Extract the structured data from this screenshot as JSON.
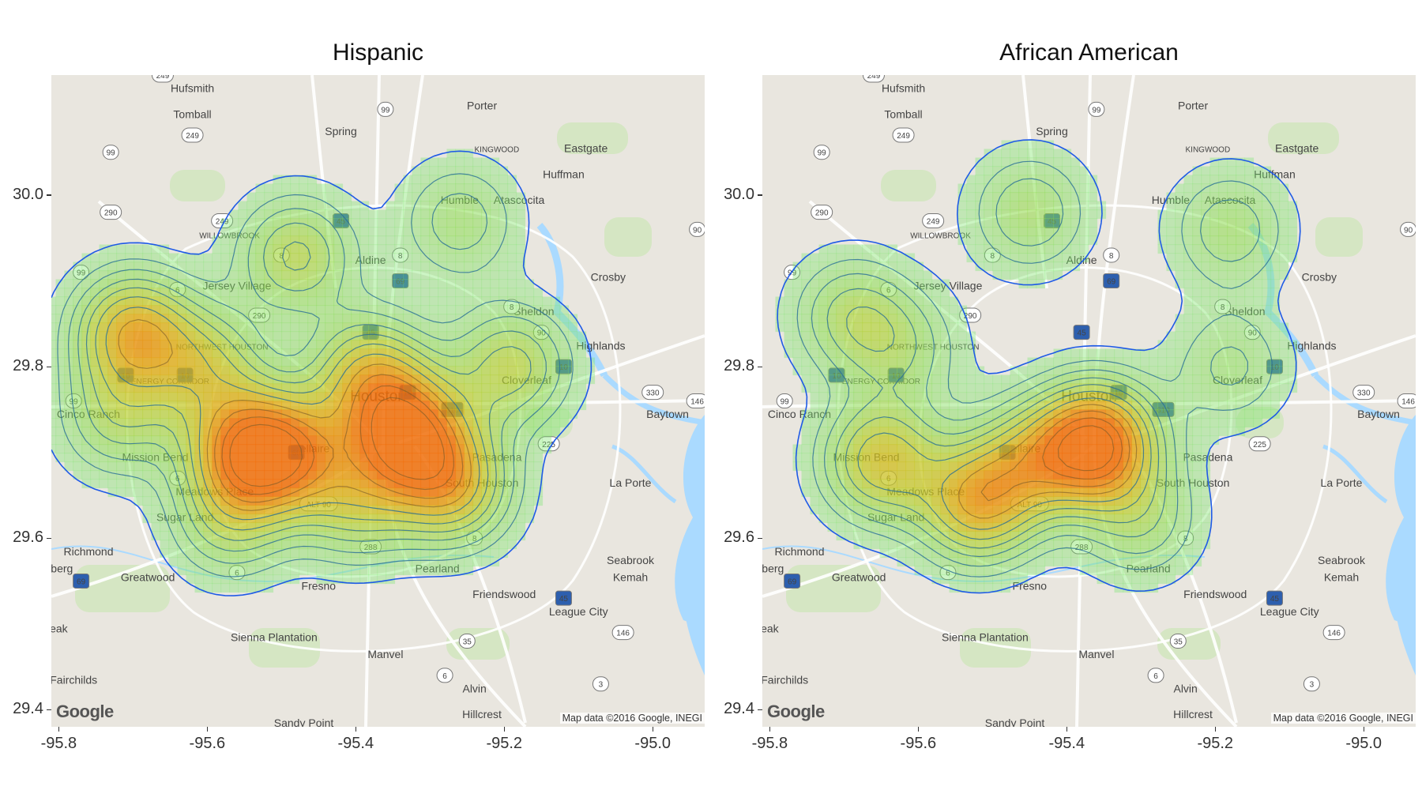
{
  "panels": [
    {
      "title": "Hispanic",
      "peaks": [
        {
          "x": -95.7,
          "y": 29.84,
          "h": 0.62
        },
        {
          "x": -95.55,
          "y": 29.7,
          "h": 0.66
        },
        {
          "x": -95.49,
          "y": 29.7,
          "h": 0.6
        },
        {
          "x": -95.33,
          "y": 29.72,
          "h": 0.85
        },
        {
          "x": -95.27,
          "y": 29.66,
          "h": 0.55
        },
        {
          "x": -95.38,
          "y": 29.79,
          "h": 0.52
        },
        {
          "x": -95.48,
          "y": 29.93,
          "h": 0.38
        },
        {
          "x": -95.6,
          "y": 29.8,
          "h": 0.4
        },
        {
          "x": -95.19,
          "y": 29.8,
          "h": 0.4
        },
        {
          "x": -95.26,
          "y": 29.97,
          "h": 0.25
        },
        {
          "x": -95.57,
          "y": 29.62,
          "h": 0.3
        },
        {
          "x": -95.4,
          "y": 29.64,
          "h": 0.35
        },
        {
          "x": -95.72,
          "y": 29.74,
          "h": 0.3
        }
      ]
    },
    {
      "title": "African American",
      "peaks": [
        {
          "x": -95.36,
          "y": 29.71,
          "h": 0.95
        },
        {
          "x": -95.52,
          "y": 29.64,
          "h": 0.6
        },
        {
          "x": -95.65,
          "y": 29.69,
          "h": 0.52
        },
        {
          "x": -95.45,
          "y": 29.69,
          "h": 0.4
        },
        {
          "x": -95.69,
          "y": 29.86,
          "h": 0.3
        },
        {
          "x": -95.45,
          "y": 29.98,
          "h": 0.28
        },
        {
          "x": -95.18,
          "y": 29.96,
          "h": 0.26
        },
        {
          "x": -95.18,
          "y": 29.8,
          "h": 0.22
        },
        {
          "x": -95.62,
          "y": 29.82,
          "h": 0.22
        },
        {
          "x": -95.3,
          "y": 29.62,
          "h": 0.25
        }
      ]
    }
  ],
  "x_axis": {
    "ticks": [
      "-95.8",
      "-95.6",
      "-95.4",
      "-95.2",
      "-95.0"
    ],
    "values": [
      -95.8,
      -95.6,
      -95.4,
      -95.2,
      -95.0
    ],
    "range": [
      -95.81,
      -94.93
    ]
  },
  "y_axis": {
    "ticks": [
      "29.4",
      "29.6",
      "29.8",
      "30.0"
    ],
    "values": [
      29.4,
      29.6,
      29.8,
      30.0
    ],
    "range": [
      29.38,
      30.14
    ]
  },
  "places": [
    {
      "name": "Hufsmith",
      "lon": -95.62,
      "lat": 30.12
    },
    {
      "name": "Tomball",
      "lon": -95.62,
      "lat": 30.09
    },
    {
      "name": "Porter",
      "lon": -95.23,
      "lat": 30.1
    },
    {
      "name": "Spring",
      "lon": -95.42,
      "lat": 30.07
    },
    {
      "name": "KINGWOOD",
      "lon": -95.21,
      "lat": 30.05
    },
    {
      "name": "Eastgate",
      "lon": -95.09,
      "lat": 30.05
    },
    {
      "name": "Huffman",
      "lon": -95.12,
      "lat": 30.02
    },
    {
      "name": "Humble",
      "lon": -95.26,
      "lat": 29.99
    },
    {
      "name": "Atascocita",
      "lon": -95.18,
      "lat": 29.99
    },
    {
      "name": "WILLOWBROOK",
      "lon": -95.57,
      "lat": 29.95
    },
    {
      "name": "Aldine",
      "lon": -95.38,
      "lat": 29.92
    },
    {
      "name": "Crosby",
      "lon": -95.06,
      "lat": 29.9
    },
    {
      "name": "Jersey Village",
      "lon": -95.56,
      "lat": 29.89
    },
    {
      "name": "Sheldon",
      "lon": -95.16,
      "lat": 29.86
    },
    {
      "name": "NORTHWEST HOUSTON",
      "lon": -95.58,
      "lat": 29.82
    },
    {
      "name": "Highlands",
      "lon": -95.07,
      "lat": 29.82
    },
    {
      "name": "ENERGY CORRIDOR",
      "lon": -95.65,
      "lat": 29.78
    },
    {
      "name": "Cloverleaf",
      "lon": -95.17,
      "lat": 29.78
    },
    {
      "name": "Houston",
      "lon": -95.37,
      "lat": 29.76
    },
    {
      "name": "Cinco Ranch",
      "lon": -95.76,
      "lat": 29.74
    },
    {
      "name": "Baytown",
      "lon": -94.98,
      "lat": 29.74
    },
    {
      "name": "Bellaire",
      "lon": -95.46,
      "lat": 29.7
    },
    {
      "name": "Mission Bend",
      "lon": -95.67,
      "lat": 29.69
    },
    {
      "name": "Pasadena",
      "lon": -95.21,
      "lat": 29.69
    },
    {
      "name": "South Houston",
      "lon": -95.23,
      "lat": 29.66
    },
    {
      "name": "La Porte",
      "lon": -95.03,
      "lat": 29.66
    },
    {
      "name": "Meadows Place",
      "lon": -95.59,
      "lat": 29.65
    },
    {
      "name": "Sugar Land",
      "lon": -95.63,
      "lat": 29.62
    },
    {
      "name": "Richmond",
      "lon": -95.76,
      "lat": 29.58
    },
    {
      "name": "Greatwood",
      "lon": -95.68,
      "lat": 29.55
    },
    {
      "name": "Pearland",
      "lon": -95.29,
      "lat": 29.56
    },
    {
      "name": "Seabrook",
      "lon": -95.03,
      "lat": 29.57
    },
    {
      "name": "Kemah",
      "lon": -95.03,
      "lat": 29.55
    },
    {
      "name": "Fresno",
      "lon": -95.45,
      "lat": 29.54
    },
    {
      "name": "Friendswood",
      "lon": -95.2,
      "lat": 29.53
    },
    {
      "name": "League City",
      "lon": -95.1,
      "lat": 29.51
    },
    {
      "name": "Sienna Plantation",
      "lon": -95.51,
      "lat": 29.48
    },
    {
      "name": "Manvel",
      "lon": -95.36,
      "lat": 29.46
    },
    {
      "name": "Fairchilds",
      "lon": -95.78,
      "lat": 29.43
    },
    {
      "name": "Alvin",
      "lon": -95.24,
      "lat": 29.42
    },
    {
      "name": "Hillcrest",
      "lon": -95.23,
      "lat": 29.39
    },
    {
      "name": "Sandy Point",
      "lon": -95.47,
      "lat": 29.38
    },
    {
      "name": "nberg",
      "lon": -95.8,
      "lat": 29.56
    },
    {
      "name": "eak",
      "lon": -95.8,
      "lat": 29.49
    }
  ],
  "shields": [
    {
      "num": "249",
      "lon": -95.66,
      "lat": 30.14
    },
    {
      "num": "99",
      "lon": -95.73,
      "lat": 30.05
    },
    {
      "num": "249",
      "lon": -95.62,
      "lat": 30.07
    },
    {
      "num": "99",
      "lon": -95.36,
      "lat": 30.1
    },
    {
      "num": "290",
      "lon": -95.73,
      "lat": 29.98
    },
    {
      "num": "249",
      "lon": -95.58,
      "lat": 29.97
    },
    {
      "num": "45",
      "lon": -95.42,
      "lat": 29.97
    },
    {
      "num": "8",
      "lon": -95.5,
      "lat": 29.93
    },
    {
      "num": "8",
      "lon": -95.34,
      "lat": 29.93
    },
    {
      "num": "69",
      "lon": -95.34,
      "lat": 29.9
    },
    {
      "num": "99",
      "lon": -95.77,
      "lat": 29.91
    },
    {
      "num": "6",
      "lon": -95.64,
      "lat": 29.89
    },
    {
      "num": "290",
      "lon": -95.53,
      "lat": 29.86
    },
    {
      "num": "8",
      "lon": -95.19,
      "lat": 29.87
    },
    {
      "num": "45",
      "lon": -95.38,
      "lat": 29.84
    },
    {
      "num": "90",
      "lon": -95.15,
      "lat": 29.84
    },
    {
      "num": "10",
      "lon": -95.71,
      "lat": 29.79
    },
    {
      "num": "10",
      "lon": -95.63,
      "lat": 29.79
    },
    {
      "num": "10",
      "lon": -95.12,
      "lat": 29.8
    },
    {
      "num": "330",
      "lon": -95.0,
      "lat": 29.77
    },
    {
      "num": "146",
      "lon": -94.94,
      "lat": 29.76
    },
    {
      "num": "99",
      "lon": -95.78,
      "lat": 29.76
    },
    {
      "num": "10",
      "lon": -95.33,
      "lat": 29.77
    },
    {
      "num": "610",
      "lon": -95.27,
      "lat": 29.75
    },
    {
      "num": "225",
      "lon": -95.14,
      "lat": 29.71
    },
    {
      "num": "69",
      "lon": -95.48,
      "lat": 29.7
    },
    {
      "num": "6",
      "lon": -95.64,
      "lat": 29.67
    },
    {
      "num": "ALT 90",
      "lon": -95.45,
      "lat": 29.64
    },
    {
      "num": "288",
      "lon": -95.38,
      "lat": 29.59
    },
    {
      "num": "8",
      "lon": -95.24,
      "lat": 29.6
    },
    {
      "num": "6",
      "lon": -95.56,
      "lat": 29.56
    },
    {
      "num": "69",
      "lon": -95.77,
      "lat": 29.55
    },
    {
      "num": "45",
      "lon": -95.12,
      "lat": 29.53
    },
    {
      "num": "146",
      "lon": -95.04,
      "lat": 29.49
    },
    {
      "num": "35",
      "lon": -95.25,
      "lat": 29.48
    },
    {
      "num": "6",
      "lon": -95.28,
      "lat": 29.44
    },
    {
      "num": "3",
      "lon": -95.07,
      "lat": 29.43
    },
    {
      "num": "90",
      "lon": -94.94,
      "lat": 29.96
    }
  ],
  "attribution": "Map data ©2016 Google, INEGI",
  "logo": "Google",
  "colors": {
    "water": "#aadaff",
    "land": "#e9e6df",
    "road": "#ffffff",
    "park": "#c8e6b0",
    "contour": "#1e5ae6",
    "highway": "#f2c14e"
  }
}
